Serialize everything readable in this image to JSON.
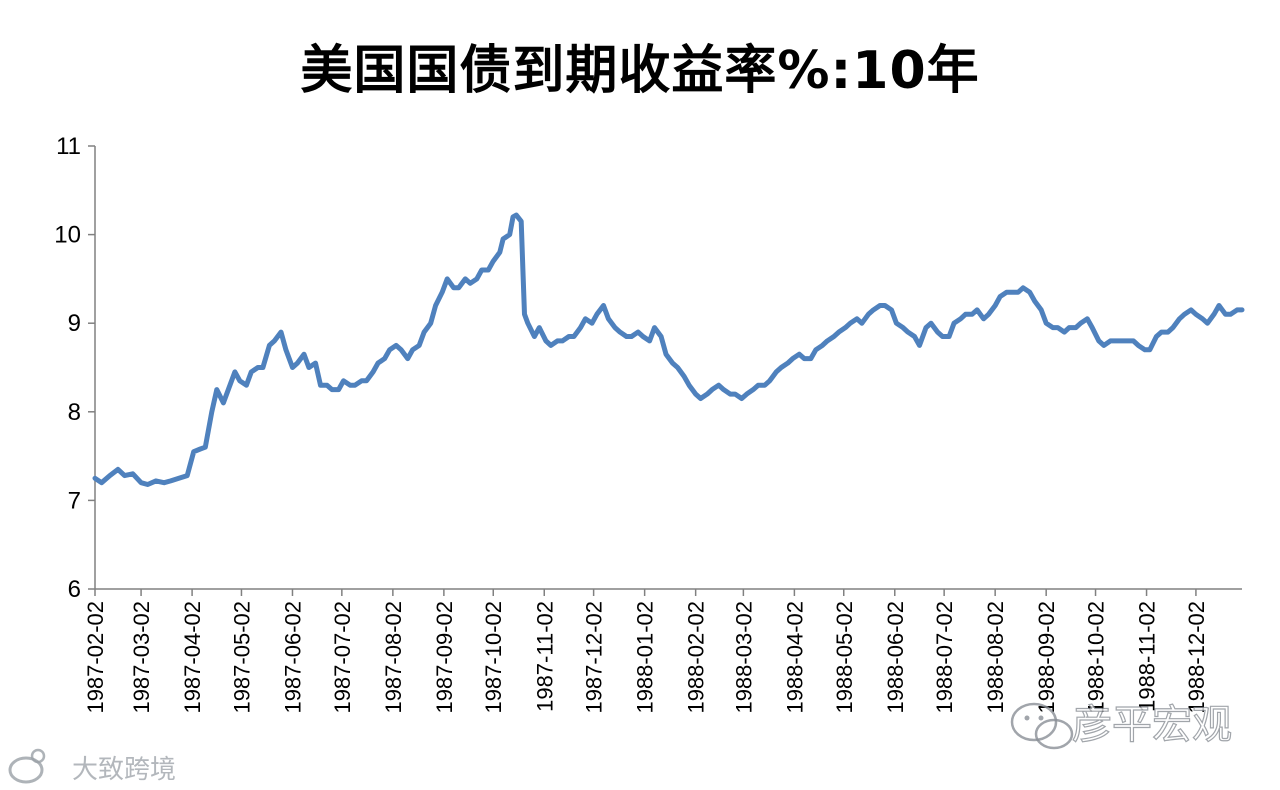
{
  "chart_data": {
    "type": "line",
    "title": "美国国债到期收益率%:10年",
    "xlabel": "",
    "ylabel": "",
    "ylim": [
      6,
      11
    ],
    "yticks": [
      "6",
      "7",
      "8",
      "9",
      "10",
      "11"
    ],
    "x_start": "1987-02-02",
    "x_end": "1988-12-30",
    "xticks": [
      "1987-02-02",
      "1987-03-02",
      "1987-04-02",
      "1987-05-02",
      "1987-06-02",
      "1987-07-02",
      "1987-08-02",
      "1987-09-02",
      "1987-10-02",
      "1987-11-02",
      "1987-12-02",
      "1988-01-02",
      "1988-02-02",
      "1988-03-02",
      "1988-04-02",
      "1988-05-02",
      "1988-06-02",
      "1988-07-02",
      "1988-08-02",
      "1988-09-02",
      "1988-10-02",
      "1988-11-02",
      "1988-12-02"
    ],
    "grid": false,
    "legend": "none",
    "line_color": "#4f81bd",
    "series": [
      {
        "points": [
          [
            "1987-02-02",
            7.25
          ],
          [
            "1987-02-06",
            7.2
          ],
          [
            "1987-02-11",
            7.28
          ],
          [
            "1987-02-16",
            7.35
          ],
          [
            "1987-02-20",
            7.28
          ],
          [
            "1987-02-25",
            7.3
          ],
          [
            "1987-03-02",
            7.2
          ],
          [
            "1987-03-06",
            7.18
          ],
          [
            "1987-03-11",
            7.22
          ],
          [
            "1987-03-16",
            7.2
          ],
          [
            "1987-03-20",
            7.22
          ],
          [
            "1987-03-25",
            7.25
          ],
          [
            "1987-03-30",
            7.28
          ],
          [
            "1987-04-03",
            7.55
          ],
          [
            "1987-04-07",
            7.58
          ],
          [
            "1987-04-10",
            7.6
          ],
          [
            "1987-04-14",
            8.0
          ],
          [
            "1987-04-17",
            8.25
          ],
          [
            "1987-04-21",
            8.1
          ],
          [
            "1987-04-24",
            8.25
          ],
          [
            "1987-04-28",
            8.45
          ],
          [
            "1987-05-01",
            8.35
          ],
          [
            "1987-05-05",
            8.3
          ],
          [
            "1987-05-08",
            8.45
          ],
          [
            "1987-05-12",
            8.5
          ],
          [
            "1987-05-15",
            8.5
          ],
          [
            "1987-05-19",
            8.75
          ],
          [
            "1987-05-22",
            8.8
          ],
          [
            "1987-05-26",
            8.9
          ],
          [
            "1987-05-29",
            8.7
          ],
          [
            "1987-06-02",
            8.5
          ],
          [
            "1987-06-05",
            8.55
          ],
          [
            "1987-06-09",
            8.65
          ],
          [
            "1987-06-12",
            8.5
          ],
          [
            "1987-06-16",
            8.55
          ],
          [
            "1987-06-19",
            8.3
          ],
          [
            "1987-06-23",
            8.3
          ],
          [
            "1987-06-26",
            8.25
          ],
          [
            "1987-06-30",
            8.25
          ],
          [
            "1987-07-03",
            8.35
          ],
          [
            "1987-07-07",
            8.3
          ],
          [
            "1987-07-10",
            8.3
          ],
          [
            "1987-07-14",
            8.35
          ],
          [
            "1987-07-17",
            8.35
          ],
          [
            "1987-07-21",
            8.45
          ],
          [
            "1987-07-24",
            8.55
          ],
          [
            "1987-07-28",
            8.6
          ],
          [
            "1987-07-31",
            8.7
          ],
          [
            "1987-08-04",
            8.75
          ],
          [
            "1987-08-07",
            8.7
          ],
          [
            "1987-08-11",
            8.6
          ],
          [
            "1987-08-14",
            8.7
          ],
          [
            "1987-08-18",
            8.75
          ],
          [
            "1987-08-21",
            8.9
          ],
          [
            "1987-08-25",
            9.0
          ],
          [
            "1987-08-28",
            9.2
          ],
          [
            "1987-09-01",
            9.35
          ],
          [
            "1987-09-04",
            9.5
          ],
          [
            "1987-09-08",
            9.4
          ],
          [
            "1987-09-11",
            9.4
          ],
          [
            "1987-09-15",
            9.5
          ],
          [
            "1987-09-18",
            9.45
          ],
          [
            "1987-09-22",
            9.5
          ],
          [
            "1987-09-25",
            9.6
          ],
          [
            "1987-09-29",
            9.6
          ],
          [
            "1987-10-02",
            9.7
          ],
          [
            "1987-10-06",
            9.8
          ],
          [
            "1987-10-08",
            9.95
          ],
          [
            "1987-10-12",
            10.0
          ],
          [
            "1987-10-14",
            10.2
          ],
          [
            "1987-10-16",
            10.22
          ],
          [
            "1987-10-19",
            10.15
          ],
          [
            "1987-10-20",
            9.6
          ],
          [
            "1987-10-21",
            9.1
          ],
          [
            "1987-10-23",
            9.0
          ],
          [
            "1987-10-27",
            8.85
          ],
          [
            "1987-10-30",
            8.95
          ],
          [
            "1987-11-03",
            8.8
          ],
          [
            "1987-11-06",
            8.75
          ],
          [
            "1987-11-10",
            8.8
          ],
          [
            "1987-11-13",
            8.8
          ],
          [
            "1987-11-17",
            8.85
          ],
          [
            "1987-11-20",
            8.85
          ],
          [
            "1987-11-24",
            8.95
          ],
          [
            "1987-11-27",
            9.05
          ],
          [
            "1987-12-01",
            9.0
          ],
          [
            "1987-12-04",
            9.1
          ],
          [
            "1987-12-08",
            9.2
          ],
          [
            "1987-12-11",
            9.05
          ],
          [
            "1987-12-15",
            8.95
          ],
          [
            "1987-12-18",
            8.9
          ],
          [
            "1987-12-22",
            8.85
          ],
          [
            "1987-12-25",
            8.85
          ],
          [
            "1987-12-29",
            8.9
          ],
          [
            "1988-01-01",
            8.85
          ],
          [
            "1988-01-05",
            8.8
          ],
          [
            "1988-01-08",
            8.95
          ],
          [
            "1988-01-12",
            8.85
          ],
          [
            "1988-01-15",
            8.65
          ],
          [
            "1988-01-19",
            8.55
          ],
          [
            "1988-01-22",
            8.5
          ],
          [
            "1988-01-26",
            8.4
          ],
          [
            "1988-01-29",
            8.3
          ],
          [
            "1988-02-02",
            8.2
          ],
          [
            "1988-02-05",
            8.15
          ],
          [
            "1988-02-09",
            8.2
          ],
          [
            "1988-02-12",
            8.25
          ],
          [
            "1988-02-16",
            8.3
          ],
          [
            "1988-02-19",
            8.25
          ],
          [
            "1988-02-23",
            8.2
          ],
          [
            "1988-02-26",
            8.2
          ],
          [
            "1988-03-01",
            8.15
          ],
          [
            "1988-03-04",
            8.2
          ],
          [
            "1988-03-08",
            8.25
          ],
          [
            "1988-03-11",
            8.3
          ],
          [
            "1988-03-15",
            8.3
          ],
          [
            "1988-03-18",
            8.35
          ],
          [
            "1988-03-22",
            8.45
          ],
          [
            "1988-03-25",
            8.5
          ],
          [
            "1988-03-29",
            8.55
          ],
          [
            "1988-04-01",
            8.6
          ],
          [
            "1988-04-05",
            8.65
          ],
          [
            "1988-04-08",
            8.6
          ],
          [
            "1988-04-12",
            8.6
          ],
          [
            "1988-04-15",
            8.7
          ],
          [
            "1988-04-19",
            8.75
          ],
          [
            "1988-04-22",
            8.8
          ],
          [
            "1988-04-26",
            8.85
          ],
          [
            "1988-04-29",
            8.9
          ],
          [
            "1988-05-03",
            8.95
          ],
          [
            "1988-05-06",
            9.0
          ],
          [
            "1988-05-10",
            9.05
          ],
          [
            "1988-05-13",
            9.0
          ],
          [
            "1988-05-17",
            9.1
          ],
          [
            "1988-05-20",
            9.15
          ],
          [
            "1988-05-24",
            9.2
          ],
          [
            "1988-05-27",
            9.2
          ],
          [
            "1988-05-31",
            9.15
          ],
          [
            "1988-06-03",
            9.0
          ],
          [
            "1988-06-07",
            8.95
          ],
          [
            "1988-06-10",
            8.9
          ],
          [
            "1988-06-14",
            8.85
          ],
          [
            "1988-06-17",
            8.75
          ],
          [
            "1988-06-21",
            8.95
          ],
          [
            "1988-06-24",
            9.0
          ],
          [
            "1988-06-28",
            8.9
          ],
          [
            "1988-07-01",
            8.85
          ],
          [
            "1988-07-05",
            8.85
          ],
          [
            "1988-07-08",
            9.0
          ],
          [
            "1988-07-12",
            9.05
          ],
          [
            "1988-07-15",
            9.1
          ],
          [
            "1988-07-19",
            9.1
          ],
          [
            "1988-07-22",
            9.15
          ],
          [
            "1988-07-26",
            9.05
          ],
          [
            "1988-07-29",
            9.1
          ],
          [
            "1988-08-02",
            9.2
          ],
          [
            "1988-08-05",
            9.3
          ],
          [
            "1988-08-09",
            9.35
          ],
          [
            "1988-08-12",
            9.35
          ],
          [
            "1988-08-16",
            9.35
          ],
          [
            "1988-08-19",
            9.4
          ],
          [
            "1988-08-23",
            9.35
          ],
          [
            "1988-08-26",
            9.25
          ],
          [
            "1988-08-30",
            9.15
          ],
          [
            "1988-09-02",
            9.0
          ],
          [
            "1988-09-06",
            8.95
          ],
          [
            "1988-09-09",
            8.95
          ],
          [
            "1988-09-13",
            8.9
          ],
          [
            "1988-09-16",
            8.95
          ],
          [
            "1988-09-20",
            8.95
          ],
          [
            "1988-09-23",
            9.0
          ],
          [
            "1988-09-27",
            9.05
          ],
          [
            "1988-09-30",
            8.95
          ],
          [
            "1988-10-04",
            8.8
          ],
          [
            "1988-10-07",
            8.75
          ],
          [
            "1988-10-11",
            8.8
          ],
          [
            "1988-10-14",
            8.8
          ],
          [
            "1988-10-18",
            8.8
          ],
          [
            "1988-10-21",
            8.8
          ],
          [
            "1988-10-25",
            8.8
          ],
          [
            "1988-10-28",
            8.75
          ],
          [
            "1988-11-01",
            8.7
          ],
          [
            "1988-11-04",
            8.7
          ],
          [
            "1988-11-08",
            8.85
          ],
          [
            "1988-11-11",
            8.9
          ],
          [
            "1988-11-15",
            8.9
          ],
          [
            "1988-11-18",
            8.95
          ],
          [
            "1988-11-22",
            9.05
          ],
          [
            "1988-11-25",
            9.1
          ],
          [
            "1988-11-29",
            9.15
          ],
          [
            "1988-12-02",
            9.1
          ],
          [
            "1988-12-06",
            9.05
          ],
          [
            "1988-12-09",
            9.0
          ],
          [
            "1988-12-13",
            9.1
          ],
          [
            "1988-12-16",
            9.2
          ],
          [
            "1988-12-20",
            9.1
          ],
          [
            "1988-12-23",
            9.1
          ],
          [
            "1988-12-27",
            9.15
          ],
          [
            "1988-12-30",
            9.15
          ]
        ]
      }
    ]
  },
  "watermarks": {
    "left_text": "大致跨境",
    "right_text": "彦平宏观"
  }
}
